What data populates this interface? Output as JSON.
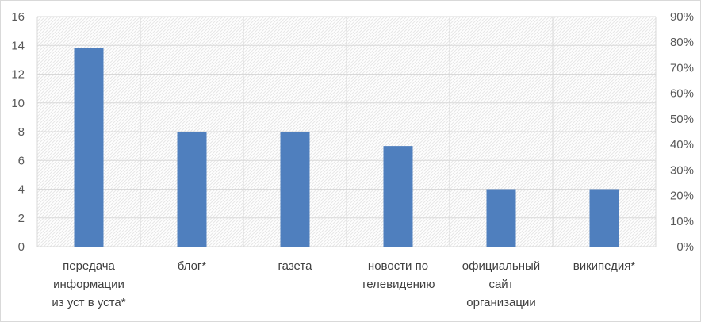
{
  "chart_data": {
    "type": "bar",
    "categories": [
      [
        "передача",
        "информации",
        "из уст в уста*"
      ],
      [
        "блог*"
      ],
      [
        "газета"
      ],
      [
        "новости по",
        "телевидению"
      ],
      [
        "официальный",
        "сайт",
        "организации"
      ],
      [
        "википедия*"
      ]
    ],
    "values": [
      13.8,
      8.0,
      8.0,
      7.0,
      4.0,
      4.0
    ],
    "ylim": [
      0,
      16
    ],
    "yticks": [
      "0",
      "2",
      "4",
      "6",
      "8",
      "10",
      "12",
      "14",
      "16"
    ],
    "y2lim": [
      0,
      90
    ],
    "y2ticks": [
      "0%",
      "10%",
      "20%",
      "30%",
      "40%",
      "50%",
      "60%",
      "70%",
      "80%",
      "90%"
    ],
    "grid": true,
    "bar_color": "#4f7fbe",
    "grid_color": "#d9d9d9"
  }
}
